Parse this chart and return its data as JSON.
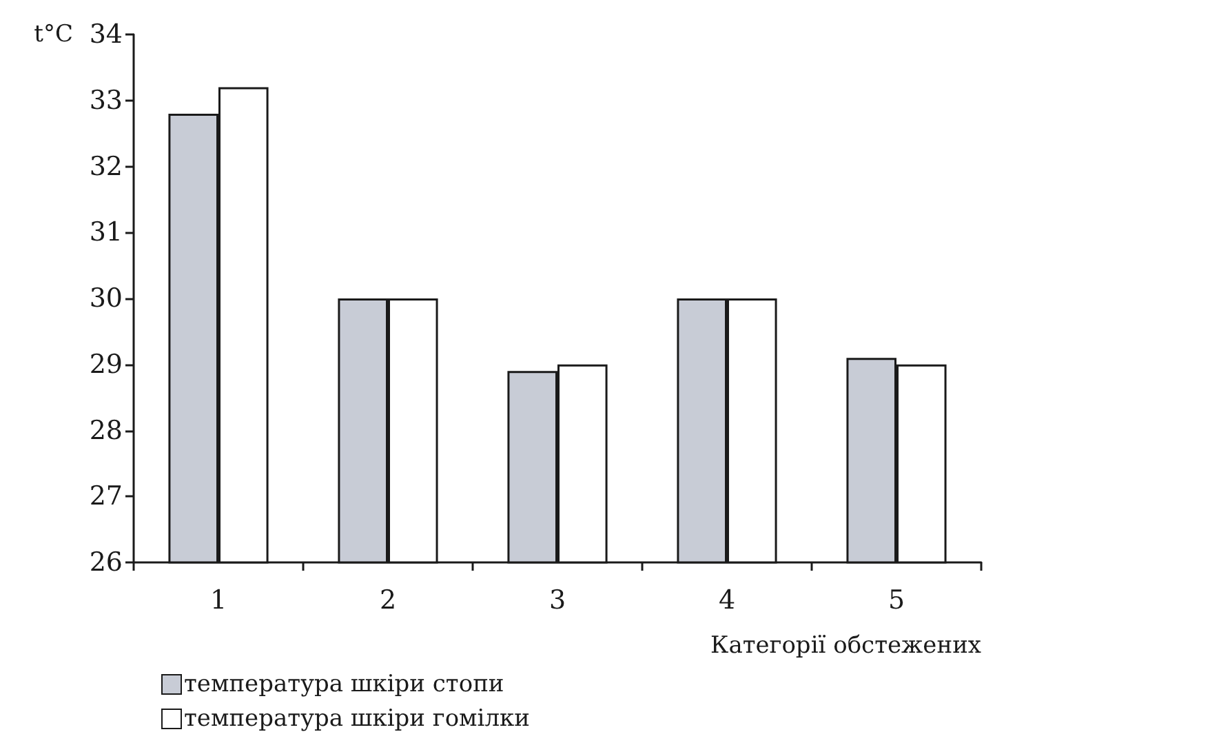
{
  "chart_data": {
    "type": "bar",
    "ylabel": "t°C",
    "xlabel": "Категорії обстежених",
    "categories": [
      "1",
      "2",
      "3",
      "4",
      "5"
    ],
    "series": [
      {
        "name": "температура шкіри стопи",
        "color": "#c8ccd6",
        "values": [
          32.8,
          30.0,
          28.9,
          30.0,
          29.1
        ]
      },
      {
        "name": "температура шкіри гомілки",
        "color": "#ffffff",
        "values": [
          33.2,
          30.0,
          29.0,
          30.0,
          29.0
        ]
      }
    ],
    "ylim": [
      26,
      34
    ],
    "yticks": [
      26,
      27,
      28,
      29,
      30,
      31,
      32,
      33,
      34
    ],
    "grid": false,
    "legend": "bottom left"
  }
}
